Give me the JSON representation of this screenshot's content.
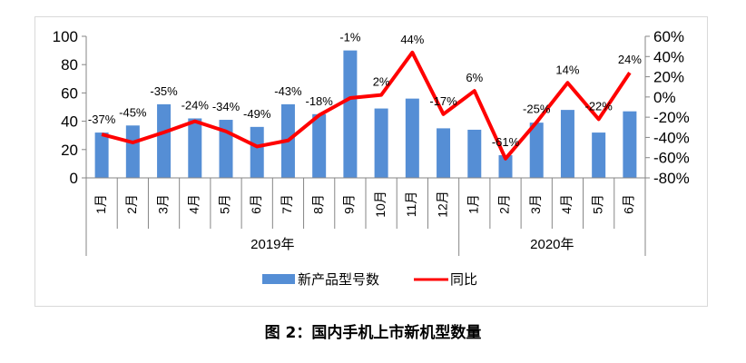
{
  "chart_data": {
    "type": "bar+line",
    "title": "图 2：国内手机上市新机型数量",
    "categories": [
      "1月",
      "2月",
      "3月",
      "4月",
      "5月",
      "6月",
      "7月",
      "8月",
      "9月",
      "10月",
      "11月",
      "12月",
      "1月",
      "2月",
      "3月",
      "4月",
      "5月",
      "6月"
    ],
    "category_groups": [
      {
        "label": "2019年",
        "count": 12
      },
      {
        "label": "2020年",
        "count": 6
      }
    ],
    "series": [
      {
        "name": "新产品型号数",
        "type": "bar",
        "axis": "left",
        "color": "#558ed5",
        "values": [
          32,
          37,
          52,
          42,
          41,
          36,
          52,
          45,
          90,
          49,
          56,
          35,
          34,
          16,
          39,
          48,
          32,
          47
        ]
      },
      {
        "name": "同比",
        "type": "line",
        "axis": "right",
        "color": "#ff0000",
        "values": [
          -37,
          -45,
          -35,
          -24,
          -34,
          -49,
          -43,
          -18,
          -1,
          2,
          44,
          -17,
          6,
          -61,
          -25,
          14,
          -22,
          24
        ],
        "labels": [
          "-37%",
          "-45%",
          "-35%",
          "-24%",
          "-34%",
          "-49%",
          "-43%",
          "-18%",
          "-1%",
          "2%",
          "44%",
          "-17%",
          "6%",
          "-61%",
          "-25%",
          "14%",
          "-22%",
          "24%"
        ]
      }
    ],
    "y_left": {
      "range": [
        0,
        100
      ],
      "ticks": [
        "0",
        "20",
        "40",
        "60",
        "80",
        "100"
      ]
    },
    "y_right": {
      "range": [
        -80,
        60
      ],
      "ticks": [
        "-80%",
        "-60%",
        "-40%",
        "-20%",
        "0%",
        "20%",
        "40%",
        "60%"
      ]
    },
    "grid": false,
    "legend": "bottom"
  }
}
